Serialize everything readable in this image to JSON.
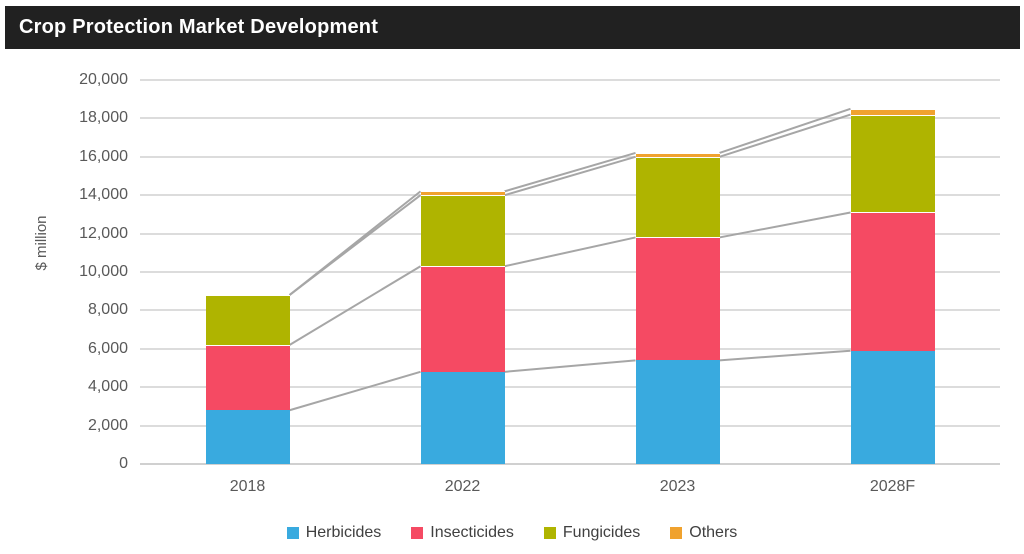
{
  "title": "Crop Protection Market Development",
  "theme": {
    "title_bg": "#212121",
    "title_fg": "#FFFFFF",
    "grid_color": "#DCDCDC",
    "axis_line_color": "#D0D0D0",
    "tick_label_color": "#595959",
    "axis_title_color": "#595959",
    "legend_text_color": "#404040",
    "connector_line_color": "#A6A6A6"
  },
  "chart_data": {
    "type": "bar",
    "stacked": true,
    "title": "Crop Protection Market Development",
    "categories": [
      "2018",
      "2022",
      "2023",
      "2028F"
    ],
    "series": [
      {
        "name": "Herbicides",
        "color": "#39AADF",
        "values": [
          2800,
          4800,
          5400,
          5900
        ]
      },
      {
        "name": "Insecticides",
        "color": "#F54A63",
        "values": [
          3400,
          5500,
          6400,
          7200
        ]
      },
      {
        "name": "Fungicides",
        "color": "#AFB400",
        "values": [
          2600,
          3700,
          4200,
          5100
        ]
      },
      {
        "name": "Others",
        "color": "#F0A22E",
        "values": [
          0,
          200,
          200,
          300
        ]
      }
    ],
    "totals": [
      8800,
      14200,
      16200,
      18500
    ],
    "xlabel": "",
    "ylabel": "$ million",
    "ylim": [
      0,
      20000
    ],
    "ytick_step": 2000,
    "ytick_labels": [
      "0",
      "2,000",
      "4,000",
      "6,000",
      "8,000",
      "10,000",
      "12,000",
      "14,000",
      "16,000",
      "18,000",
      "20,000"
    ],
    "grid": true,
    "legend_position": "bottom",
    "connector_lines": true
  }
}
